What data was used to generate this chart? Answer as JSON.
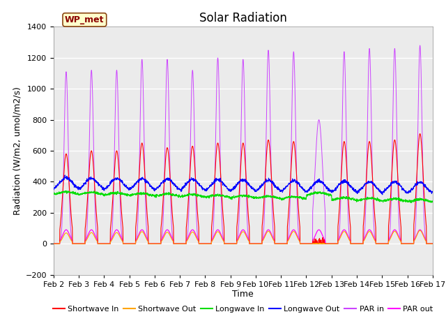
{
  "title": "Solar Radiation",
  "xlabel": "Time",
  "ylabel": "Radiation (W/m2, umol/m2/s)",
  "ylim": [
    -200,
    1400
  ],
  "yticks": [
    -200,
    0,
    200,
    400,
    600,
    800,
    1000,
    1200,
    1400
  ],
  "xtick_labels": [
    "Feb 2",
    "Feb 3",
    "Feb 4",
    "Feb 5",
    "Feb 6",
    "Feb 7",
    "Feb 8",
    "Feb 9",
    "Feb 10",
    "Feb 11",
    "Feb 12",
    "Feb 13",
    "Feb 14",
    "Feb 15",
    "Feb 16",
    "Feb 17"
  ],
  "station_label": "WP_met",
  "colors": {
    "shortwave_in": "#FF0000",
    "shortwave_out": "#FFA500",
    "longwave_in": "#00DD00",
    "longwave_out": "#0000FF",
    "par_in": "#CC44FF",
    "par_out": "#FF00FF"
  },
  "legend_labels": [
    "Shortwave In",
    "Shortwave Out",
    "Longwave In",
    "Longwave Out",
    "PAR in",
    "PAR out"
  ],
  "background_color": "#EBEBEB",
  "title_fontsize": 12,
  "label_fontsize": 9,
  "tick_fontsize": 8
}
